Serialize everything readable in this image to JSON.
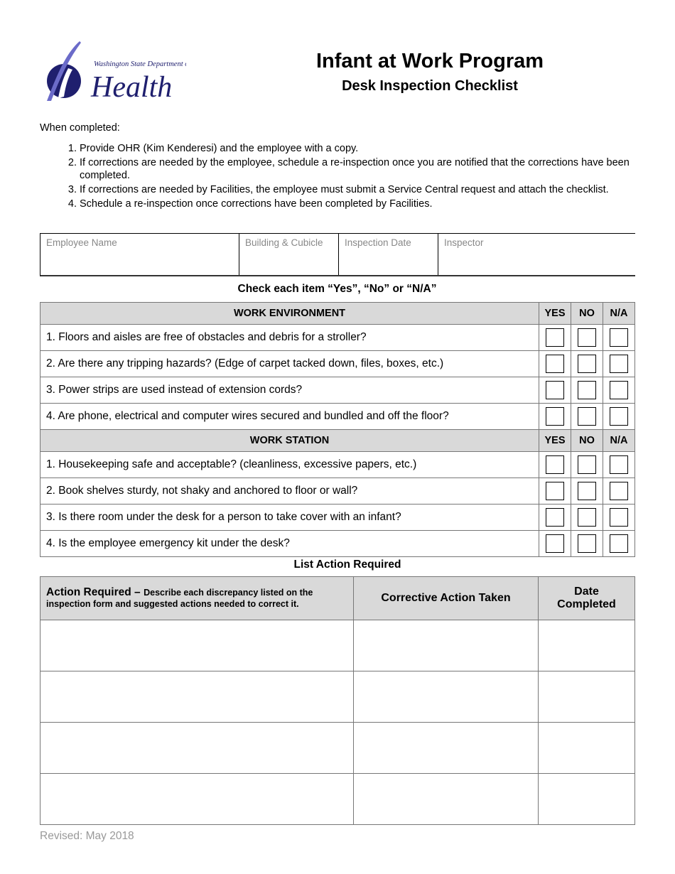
{
  "logo": {
    "line1": "Washington State Department of",
    "line2": "Health",
    "color": "#1f1f6e",
    "accent": "#6b6bc9"
  },
  "header": {
    "title": "Infant at Work Program",
    "subtitle": "Desk Inspection Checklist"
  },
  "intro": "When completed:",
  "steps": [
    "Provide OHR (Kim Kenderesi) and the employee with a copy.",
    "If corrections are needed by the employee, schedule a re-inspection once you are notified that the corrections have been completed.",
    "If corrections are needed by Facilities, the employee must submit a Service Central request and attach the checklist.",
    "Schedule a re-inspection once corrections have been completed by Facilities."
  ],
  "info_fields": [
    {
      "label": "Employee Name",
      "value": ""
    },
    {
      "label": "Building & Cubicle",
      "value": ""
    },
    {
      "label": "Inspection Date",
      "value": ""
    },
    {
      "label": "Inspector",
      "value": ""
    }
  ],
  "check_instruction": "Check each item “Yes”, “No” or “N/A”",
  "sections": [
    {
      "title": "WORK ENVIRONMENT",
      "cols": [
        "YES",
        "NO",
        "N/A"
      ],
      "items": [
        "1. Floors and aisles are free of obstacles and debris for a stroller?",
        "2. Are there any tripping hazards? (Edge of carpet tacked down, files, boxes, etc.)",
        "3. Power strips are used instead of extension cords?",
        "4. Are phone, electrical and computer wires secured and bundled and off the floor?"
      ]
    },
    {
      "title": "WORK STATION",
      "cols": [
        "YES",
        "NO",
        "N/A"
      ],
      "items": [
        "1. Housekeeping safe and acceptable? (cleanliness, excessive papers, etc.)",
        "2. Book shelves sturdy, not shaky and anchored to floor or wall?",
        "3. Is there room under the desk for a person to take cover with an infant?",
        "4. Is the employee emergency kit under the desk?"
      ]
    }
  ],
  "action_title": "List Action Required",
  "action_table": {
    "col1_title": "Action Required –",
    "col1_desc": "Describe each discrepancy listed on the inspection form and suggested actions needed to correct it.",
    "col2_title": "Corrective Action Taken",
    "col3_title": "Date Completed",
    "rows": [
      [
        "",
        "",
        ""
      ],
      [
        "",
        "",
        ""
      ],
      [
        "",
        "",
        ""
      ],
      [
        "",
        "",
        ""
      ]
    ]
  },
  "footer": "Revised: May 2018"
}
